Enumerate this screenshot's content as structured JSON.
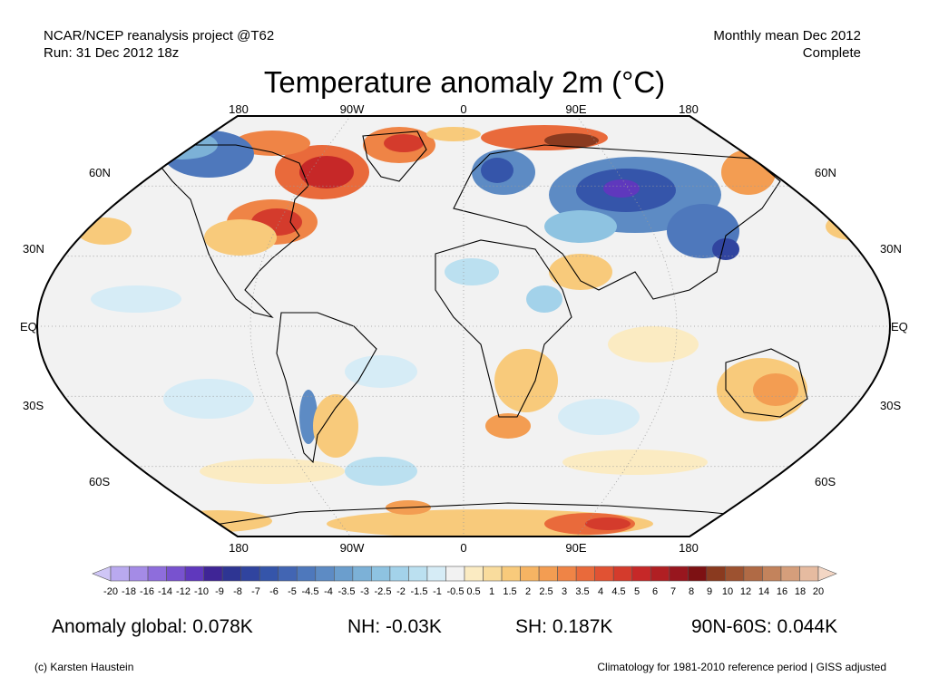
{
  "header": {
    "source_line1": "NCAR/NCEP reanalysis project @T62",
    "source_line2": "Run: 31 Dec 2012 18z",
    "period_line1": "Monthly mean Dec 2012",
    "period_line2": "Complete",
    "title": "Temperature anomaly 2m (°C)"
  },
  "map": {
    "projection": "Robinson",
    "lon_labels": [
      "180",
      "90W",
      "0",
      "90E",
      "180"
    ],
    "lat_labels_left": [
      "60N",
      "30N",
      "EQ",
      "30S",
      "60S"
    ],
    "lat_labels_right": [
      "60N",
      "30N",
      "EQ",
      "30S",
      "60S"
    ],
    "ocean_background": "#f2f2f2"
  },
  "colorbar": {
    "labels": [
      "-20",
      "-18",
      "-16",
      "-14",
      "-12",
      "-10",
      "-9",
      "-8",
      "-7",
      "-6",
      "-5",
      "-4.5",
      "-4",
      "-3.5",
      "-3",
      "-2.5",
      "-2",
      "-1.5",
      "-1",
      "-0.5",
      "0.5",
      "1",
      "1.5",
      "2",
      "2.5",
      "3",
      "3.5",
      "4",
      "4.5",
      "5",
      "6",
      "7",
      "8",
      "9",
      "10",
      "12",
      "14",
      "16",
      "18",
      "20"
    ],
    "colors": [
      "#cfc6f6",
      "#b9a9ef",
      "#a48be6",
      "#8e6ddc",
      "#7852cf",
      "#5f38bd",
      "#3f2596",
      "#2e3593",
      "#30449f",
      "#3555aa",
      "#4265b3",
      "#4e78bc",
      "#5d8bc4",
      "#6b9ecd",
      "#7cb1d7",
      "#8ec3e1",
      "#a3d2ea",
      "#bbe0f0",
      "#d6ecf6",
      "#f2f2f2",
      "#fbebc2",
      "#f9dc9d",
      "#f8ca7b",
      "#f6b463",
      "#f39d52",
      "#ef8446",
      "#e96a3b",
      "#e15233",
      "#d43b2c",
      "#c62828",
      "#b01f23",
      "#98161e",
      "#7d1113",
      "#8a3a1f",
      "#9d5230",
      "#b06a45",
      "#c3835c",
      "#d59e7b",
      "#e6bba0",
      "#f3d6c4"
    ]
  },
  "stats": {
    "global": "Anomaly global: 0.078K",
    "nh": "NH: -0.03K",
    "sh": "SH: 0.187K",
    "arctic": "90N-60S: 0.044K"
  },
  "footer": {
    "copyright": "(c) Karsten Haustein",
    "climatology": "Climatology for 1981-2010 reference period | GISS adjusted"
  }
}
